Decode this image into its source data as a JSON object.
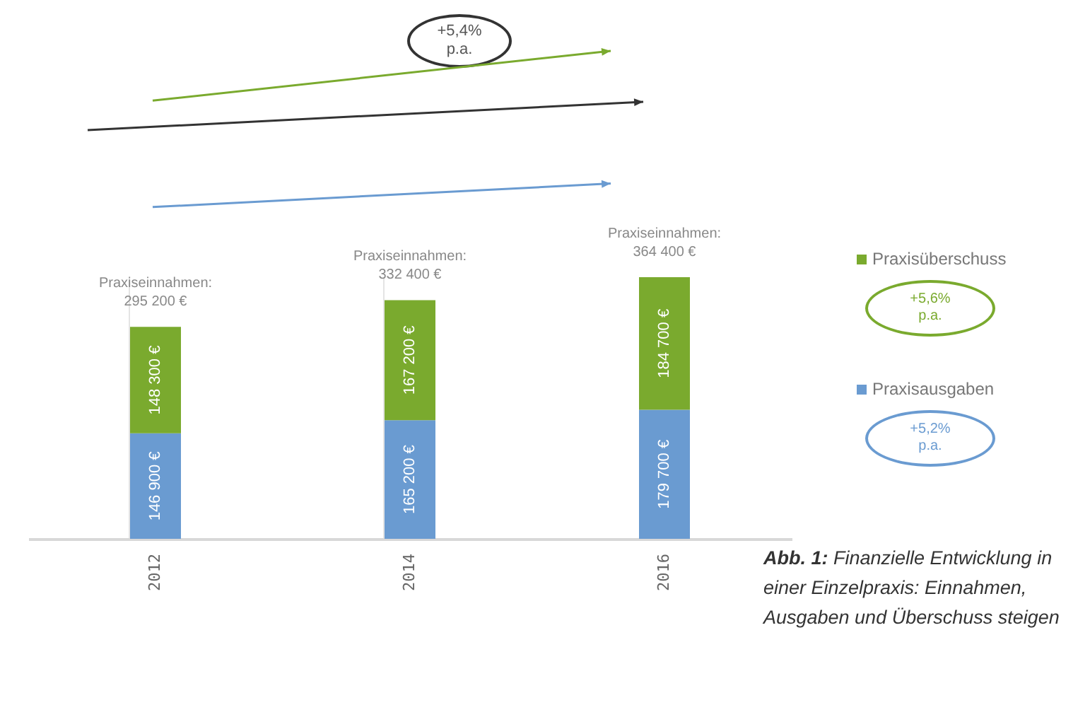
{
  "chart_data": {
    "type": "bar",
    "stacked": true,
    "categories": [
      "2012",
      "2014",
      "2016"
    ],
    "series": [
      {
        "name": "Praxisausgaben",
        "color": "#6a9bd1",
        "values": [
          146900,
          165200,
          179700
        ],
        "value_labels": [
          "146 900 €",
          "165 200 €",
          "179 700 €"
        ]
      },
      {
        "name": "Praxisüberschuss",
        "color": "#7aaa2e",
        "values": [
          148300,
          167200,
          184700
        ],
        "value_labels": [
          "148 300 €",
          "167 200 €",
          "184 700 €"
        ]
      }
    ],
    "totals": [
      "Praxiseinnahmen:\n295 200 €",
      "Praxiseinnahmen:\n332 400 €",
      "Praxiseinnahmen:\n364 400 €"
    ],
    "annotations": [
      "+5,4%\np.a.",
      "+5,6%\np.a.",
      "+5,2%\np.a.",
      "Abb. 1: Finanzielle Entwicklung in einer Einzelpraxis: Einnahmen, Ausgaben und Überschuss steigen"
    ],
    "grid": "x",
    "legend": "right"
  }
}
